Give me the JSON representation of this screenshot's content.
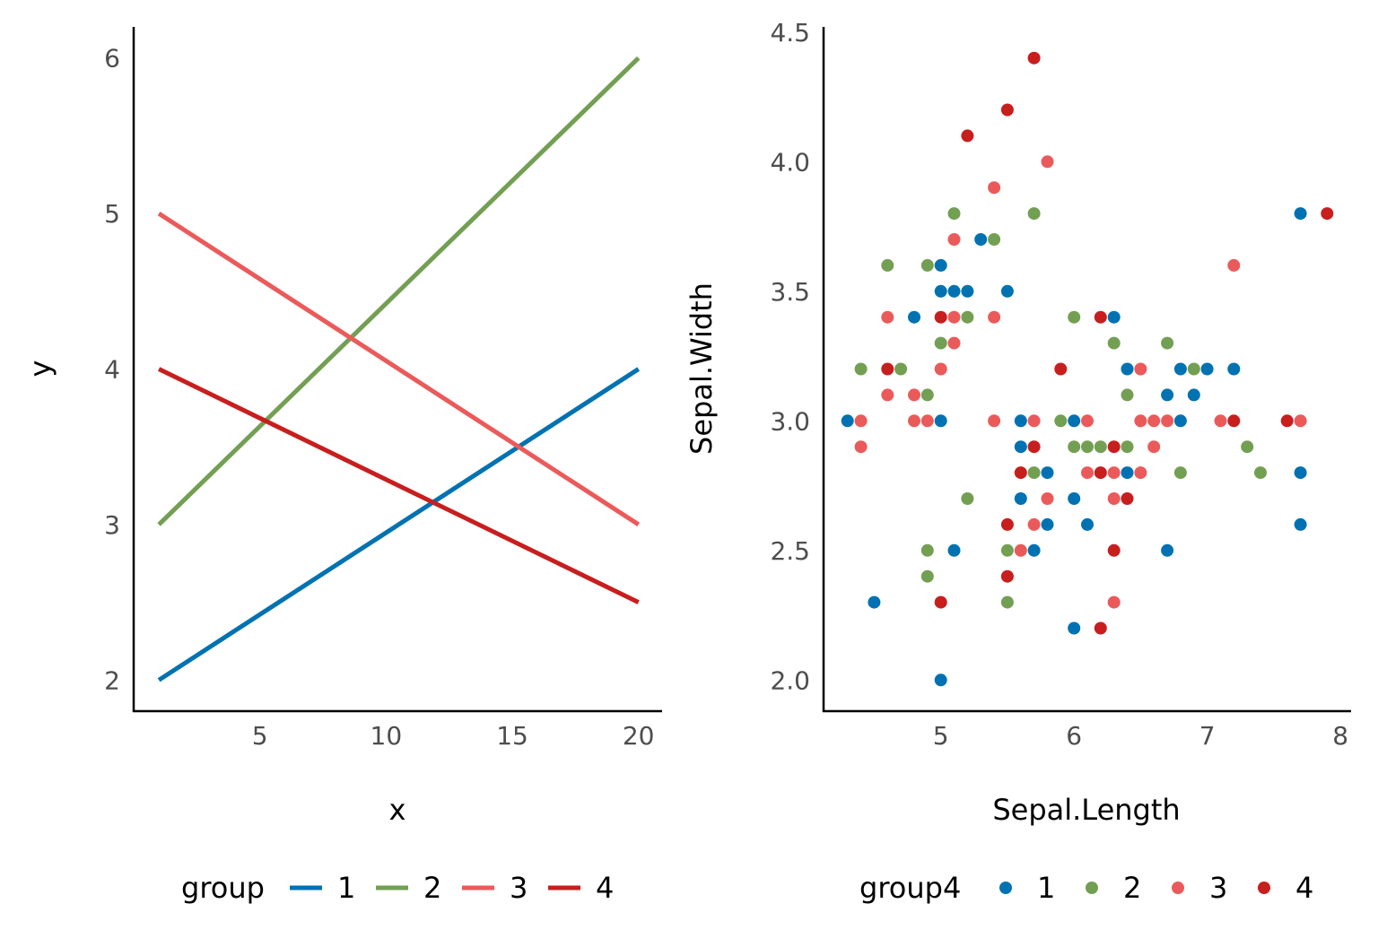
{
  "colors": {
    "1": "#0072B2",
    "2": "#739F53",
    "3": "#EB5A5A",
    "4": "#C81E1E"
  },
  "chart_data": [
    {
      "type": "line",
      "xlabel": "x",
      "ylabel": "y",
      "xlim": [
        0,
        20.9
      ],
      "ylim": [
        1.8,
        6.2
      ],
      "xticks": [
        5,
        10,
        15,
        20
      ],
      "xtick_labels": [
        "5",
        "10",
        "15",
        "20"
      ],
      "yticks": [
        2,
        3,
        4,
        5,
        6
      ],
      "ytick_labels": [
        "2",
        "3",
        "4",
        "5",
        "6"
      ],
      "grid": false,
      "legend": {
        "title": "group",
        "position": "bottom",
        "entries": [
          "1",
          "2",
          "3",
          "4"
        ]
      },
      "series": [
        {
          "name": "1",
          "x": [
            1,
            20
          ],
          "y": [
            2,
            4
          ]
        },
        {
          "name": "2",
          "x": [
            1,
            20
          ],
          "y": [
            3,
            6
          ]
        },
        {
          "name": "3",
          "x": [
            1,
            20
          ],
          "y": [
            5,
            3
          ]
        },
        {
          "name": "4",
          "x": [
            1,
            20
          ],
          "y": [
            4,
            2.5
          ]
        }
      ]
    },
    {
      "type": "scatter",
      "xlabel": "Sepal.Length",
      "ylabel": "Sepal.Width",
      "xlim": [
        4.12,
        8.08
      ],
      "ylim": [
        1.88,
        4.52
      ],
      "xticks": [
        5,
        6,
        7,
        8
      ],
      "xtick_labels": [
        "5",
        "6",
        "7",
        "8"
      ],
      "yticks": [
        2.0,
        2.5,
        3.0,
        3.5,
        4.0,
        4.5
      ],
      "ytick_labels": [
        "2.0",
        "2.5",
        "3.0",
        "3.5",
        "4.0",
        "4.5"
      ],
      "grid": false,
      "legend": {
        "title": "group4",
        "position": "bottom",
        "entries": [
          "1",
          "2",
          "3",
          "4"
        ]
      },
      "series": [
        {
          "name": "1",
          "points": [
            [
              4.3,
              3.0
            ],
            [
              4.5,
              2.3
            ],
            [
              4.8,
              3.4
            ],
            [
              5.0,
              3.6
            ],
            [
              5.0,
              3.5
            ],
            [
              5.0,
              3.0
            ],
            [
              5.0,
              2.0
            ],
            [
              5.1,
              3.5
            ],
            [
              5.1,
              2.5
            ],
            [
              5.2,
              3.5
            ],
            [
              5.3,
              3.7
            ],
            [
              5.5,
              3.5
            ],
            [
              5.6,
              3.0
            ],
            [
              5.6,
              2.9
            ],
            [
              5.6,
              2.7
            ],
            [
              5.7,
              2.5
            ],
            [
              5.8,
              2.8
            ],
            [
              5.8,
              2.6
            ],
            [
              6.0,
              3.0
            ],
            [
              6.0,
              2.7
            ],
            [
              6.0,
              2.2
            ],
            [
              6.1,
              2.6
            ],
            [
              6.3,
              3.4
            ],
            [
              6.4,
              3.2
            ],
            [
              6.4,
              2.8
            ],
            [
              6.7,
              3.1
            ],
            [
              6.7,
              2.5
            ],
            [
              6.8,
              3.2
            ],
            [
              6.8,
              3.0
            ],
            [
              6.9,
              3.1
            ],
            [
              7.0,
              3.2
            ],
            [
              7.2,
              3.2
            ],
            [
              7.7,
              3.8
            ],
            [
              7.7,
              2.8
            ],
            [
              7.7,
              2.6
            ]
          ]
        },
        {
          "name": "2",
          "points": [
            [
              4.4,
              3.2
            ],
            [
              4.6,
              3.6
            ],
            [
              4.7,
              3.2
            ],
            [
              4.9,
              3.6
            ],
            [
              4.9,
              3.1
            ],
            [
              4.9,
              2.5
            ],
            [
              4.9,
              2.4
            ],
            [
              5.0,
              3.3
            ],
            [
              5.1,
              3.8
            ],
            [
              5.2,
              3.4
            ],
            [
              5.2,
              2.7
            ],
            [
              5.4,
              3.7
            ],
            [
              5.5,
              2.5
            ],
            [
              5.5,
              2.3
            ],
            [
              5.7,
              3.8
            ],
            [
              5.7,
              2.8
            ],
            [
              5.9,
              3.0
            ],
            [
              6.0,
              3.4
            ],
            [
              6.0,
              2.9
            ],
            [
              6.1,
              2.9
            ],
            [
              6.2,
              2.9
            ],
            [
              6.3,
              3.3
            ],
            [
              6.4,
              3.1
            ],
            [
              6.4,
              2.9
            ],
            [
              6.7,
              3.3
            ],
            [
              6.8,
              2.8
            ],
            [
              6.9,
              3.2
            ],
            [
              7.3,
              2.9
            ],
            [
              7.4,
              2.8
            ]
          ]
        },
        {
          "name": "3",
          "points": [
            [
              4.4,
              3.0
            ],
            [
              4.4,
              2.9
            ],
            [
              4.6,
              3.4
            ],
            [
              4.6,
              3.1
            ],
            [
              4.8,
              3.1
            ],
            [
              4.8,
              3.0
            ],
            [
              4.9,
              3.0
            ],
            [
              5.0,
              3.2
            ],
            [
              5.1,
              3.7
            ],
            [
              5.1,
              3.4
            ],
            [
              5.1,
              3.3
            ],
            [
              5.4,
              3.9
            ],
            [
              5.4,
              3.4
            ],
            [
              5.4,
              3.0
            ],
            [
              5.6,
              2.5
            ],
            [
              5.7,
              3.0
            ],
            [
              5.7,
              2.6
            ],
            [
              5.8,
              4.0
            ],
            [
              5.8,
              2.7
            ],
            [
              6.1,
              3.0
            ],
            [
              6.1,
              2.8
            ],
            [
              6.3,
              2.8
            ],
            [
              6.3,
              2.7
            ],
            [
              6.3,
              2.3
            ],
            [
              6.5,
              3.2
            ],
            [
              6.5,
              3.0
            ],
            [
              6.5,
              2.8
            ],
            [
              6.6,
              3.0
            ],
            [
              6.6,
              2.9
            ],
            [
              6.7,
              3.0
            ],
            [
              7.1,
              3.0
            ],
            [
              7.2,
              3.6
            ],
            [
              7.7,
              3.0
            ]
          ]
        },
        {
          "name": "4",
          "points": [
            [
              4.6,
              3.2
            ],
            [
              5.0,
              3.4
            ],
            [
              5.0,
              2.3
            ],
            [
              5.2,
              4.1
            ],
            [
              5.5,
              4.2
            ],
            [
              5.5,
              2.6
            ],
            [
              5.5,
              2.4
            ],
            [
              5.6,
              2.8
            ],
            [
              5.7,
              4.4
            ],
            [
              5.7,
              2.9
            ],
            [
              5.9,
              3.2
            ],
            [
              6.2,
              3.4
            ],
            [
              6.2,
              2.8
            ],
            [
              6.2,
              2.2
            ],
            [
              6.3,
              2.9
            ],
            [
              6.3,
              2.5
            ],
            [
              6.4,
              2.7
            ],
            [
              7.2,
              3.0
            ],
            [
              7.6,
              3.0
            ],
            [
              7.9,
              3.8
            ]
          ]
        }
      ]
    }
  ]
}
